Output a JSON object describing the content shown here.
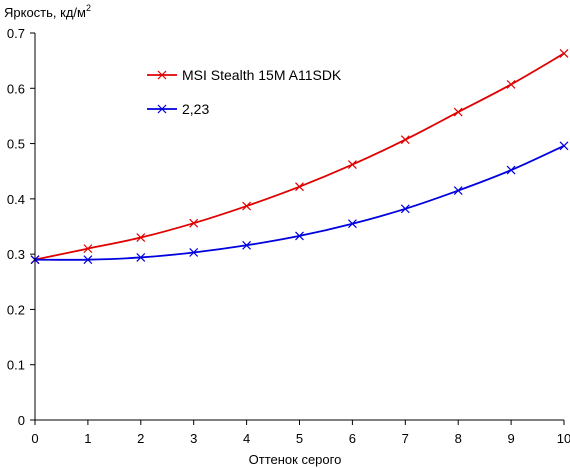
{
  "chart_data": {
    "type": "line",
    "ylabel": "Яркость, кд/м",
    "ylabel_sup": "2",
    "xlabel": "Оттенок серого",
    "x": [
      0,
      1,
      2,
      3,
      4,
      5,
      6,
      7,
      8,
      9,
      10
    ],
    "xlim": [
      0,
      10
    ],
    "ylim": [
      0,
      0.7
    ],
    "x_ticks": [
      "0",
      "1",
      "2",
      "3",
      "4",
      "5",
      "6",
      "7",
      "8",
      "9",
      "10"
    ],
    "y_ticks": [
      "0",
      "0.1",
      "0.2",
      "0.3",
      "0.4",
      "0.5",
      "0.6",
      "0.7"
    ],
    "grid": false,
    "legend_position": "top-left",
    "series": [
      {
        "name": "MSI Stealth 15M A11SDK",
        "color": "#e00000",
        "values": [
          0.29,
          0.31,
          0.33,
          0.356,
          0.387,
          0.422,
          0.462,
          0.507,
          0.557,
          0.607,
          0.663
        ]
      },
      {
        "name": "2,23",
        "color": "#0000e0",
        "values": [
          0.29,
          0.29,
          0.294,
          0.303,
          0.316,
          0.333,
          0.355,
          0.382,
          0.415,
          0.452,
          0.496
        ]
      }
    ]
  }
}
